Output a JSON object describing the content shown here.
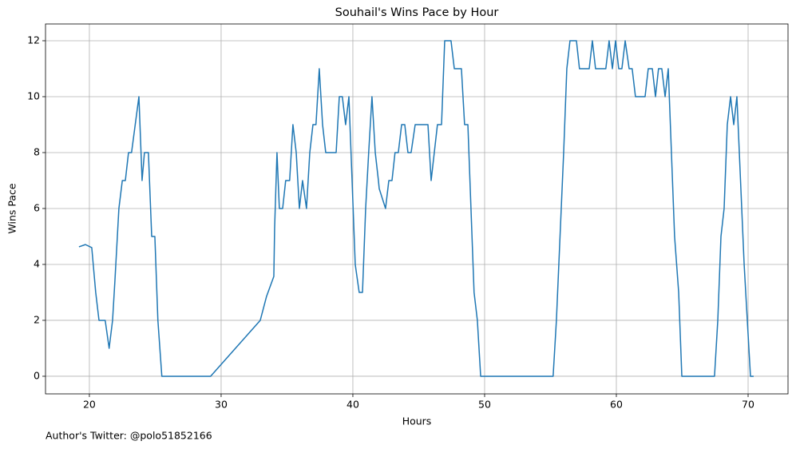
{
  "chart_data": {
    "type": "line",
    "title": "Souhail's Wins Pace by Hour",
    "xlabel": "Hours",
    "ylabel": "Wins Pace",
    "annotation": "Author's Twitter: @polo51852166",
    "color": "#1f77b4",
    "grid": true,
    "xlim": [
      16.67,
      73.03
    ],
    "ylim": [
      -0.63,
      12.6
    ],
    "xticks": [
      20,
      30,
      40,
      50,
      60,
      70
    ],
    "yticks": [
      0,
      2,
      4,
      6,
      8,
      10,
      12
    ],
    "x": [
      19.21,
      19.7,
      20.18,
      20.48,
      20.73,
      21.2,
      21.5,
      21.76,
      21.94,
      22.24,
      22.5,
      22.73,
      22.97,
      23.2,
      23.76,
      24.0,
      24.18,
      24.48,
      24.73,
      24.97,
      25.2,
      25.5,
      29.2,
      32.97,
      33.45,
      34.0,
      34.06,
      34.24,
      34.42,
      34.67,
      34.9,
      35.2,
      35.45,
      35.7,
      35.94,
      36.18,
      36.48,
      36.73,
      36.97,
      37.2,
      37.45,
      37.7,
      37.94,
      38.73,
      38.97,
      39.2,
      39.45,
      39.7,
      39.94,
      40.18,
      40.48,
      40.73,
      40.97,
      41.2,
      41.45,
      41.7,
      41.94,
      42.0,
      42.48,
      42.73,
      42.97,
      43.2,
      43.45,
      43.7,
      43.94,
      44.18,
      44.42,
      44.73,
      45.7,
      45.94,
      46.18,
      46.42,
      46.73,
      46.97,
      47.45,
      47.7,
      48.24,
      48.48,
      48.73,
      49.2,
      49.45,
      49.7,
      55.2,
      55.45,
      56.0,
      56.24,
      56.48,
      56.97,
      57.2,
      57.94,
      58.18,
      58.42,
      59.2,
      59.45,
      59.7,
      59.94,
      60.18,
      60.42,
      60.67,
      60.97,
      61.2,
      61.45,
      62.18,
      62.42,
      62.73,
      62.97,
      63.2,
      63.45,
      63.7,
      63.94,
      64.42,
      64.73,
      64.97,
      67.45,
      67.7,
      67.94,
      68.18,
      68.42,
      68.67,
      68.91,
      69.15,
      69.7,
      70.18,
      70.42
    ],
    "values": [
      4.63,
      4.71,
      4.6,
      3.0,
      2.0,
      2.0,
      1.0,
      2.0,
      3.43,
      6.0,
      7.0,
      7.0,
      8.0,
      8.0,
      10.0,
      7.0,
      8.0,
      8.0,
      5.0,
      5.0,
      2.0,
      0,
      0,
      2.0,
      2.86,
      3.57,
      5.29,
      8.0,
      6.0,
      6.0,
      7.0,
      7.0,
      9.0,
      8.0,
      6.0,
      7.0,
      6.0,
      8.0,
      9.0,
      9.0,
      11.0,
      9.0,
      8.0,
      8.0,
      10.0,
      10.0,
      9.0,
      10.0,
      7.0,
      4.0,
      3.0,
      3.0,
      6.0,
      8.0,
      10.0,
      8.0,
      7.0,
      6.71,
      6.0,
      7.0,
      7.0,
      8.0,
      8.0,
      9.0,
      9.0,
      8.0,
      8.0,
      9.0,
      9.0,
      7.0,
      8.0,
      9.0,
      9.0,
      12.0,
      12.0,
      11.0,
      11.0,
      9.0,
      9.0,
      3.0,
      2.0,
      0,
      0,
      2.0,
      8.0,
      11.0,
      12.0,
      12.0,
      11.0,
      11.0,
      12.0,
      11.0,
      11.0,
      12.0,
      11.0,
      12.0,
      11.0,
      11.0,
      12.0,
      11.0,
      11.0,
      10.0,
      10.0,
      11.0,
      11.0,
      10.0,
      11.0,
      11.0,
      10.0,
      11.0,
      5.0,
      3.0,
      0,
      0,
      2.0,
      5.0,
      6.0,
      9.0,
      10.0,
      9.0,
      10.0,
      4.0,
      0,
      0
    ]
  }
}
